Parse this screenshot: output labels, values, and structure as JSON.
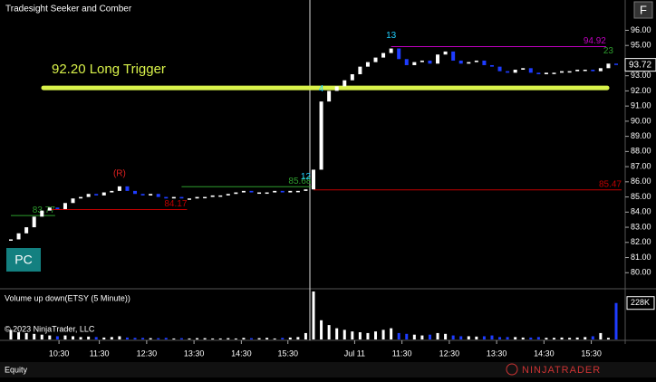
{
  "window_title": "Tradesight Seeker and Comber",
  "corner_button": "F",
  "pc_button": "PC",
  "copyright": "© 2023 NinjaTrader, LLC",
  "status_bar": "Equity",
  "logo": "NINJATRADER",
  "chart_data": {
    "type": "candlestick",
    "ylim": [
      79,
      98
    ],
    "yticks": [
      {
        "value": 80,
        "label": "80.00"
      },
      {
        "value": 81,
        "label": "81.00"
      },
      {
        "value": 82,
        "label": "82.00"
      },
      {
        "value": 83,
        "label": "83.00"
      },
      {
        "value": 84,
        "label": "84.00"
      },
      {
        "value": 85,
        "label": "85.00"
      },
      {
        "value": 86,
        "label": "86.00"
      },
      {
        "value": 87,
        "label": "87.00"
      },
      {
        "value": 88,
        "label": "88.00"
      },
      {
        "value": 89,
        "label": "89.00"
      },
      {
        "value": 90,
        "label": "90.00"
      },
      {
        "value": 91,
        "label": "91.00"
      },
      {
        "value": 92,
        "label": "92.00"
      },
      {
        "value": 93,
        "label": "93.00"
      },
      {
        "value": 95,
        "label": "95.00"
      },
      {
        "value": 96,
        "label": "96.00"
      }
    ],
    "xlim": [
      -1,
      80
    ],
    "xticks": [
      {
        "value": 6.2,
        "label": "10:30"
      },
      {
        "value": 11.4,
        "label": "11:30"
      },
      {
        "value": 17.5,
        "label": "12:30"
      },
      {
        "value": 23.6,
        "label": "13:30"
      },
      {
        "value": 29.7,
        "label": "14:30"
      },
      {
        "value": 35.7,
        "label": "15:30"
      },
      {
        "value": 44.3,
        "label": "Jul 11"
      },
      {
        "value": 50.4,
        "label": "11:30"
      },
      {
        "value": 56.5,
        "label": "12:30"
      },
      {
        "value": 62.6,
        "label": "13:30"
      },
      {
        "value": 68.7,
        "label": "14:30"
      },
      {
        "value": 74.8,
        "label": "15:30"
      }
    ],
    "series": [
      {
        "name": "ETSY",
        "up_color": "#ffffff",
        "down_color": "#1e3cff",
        "values": [
          82.2,
          82.6,
          83.0,
          83.7,
          84.1,
          84.3,
          84.2,
          84.6,
          84.9,
          85.0,
          85.2,
          85.1,
          85.3,
          85.4,
          85.7,
          85.4,
          85.2,
          85.1,
          85.2,
          85.0,
          84.9,
          85.0,
          84.9,
          84.9,
          85.0,
          85.0,
          85.1,
          85.1,
          85.2,
          85.3,
          85.4,
          85.3,
          85.3,
          85.3,
          85.4,
          85.3,
          85.4,
          85.4,
          85.5,
          86.8,
          91.3,
          92.0,
          92.3,
          92.7,
          93.1,
          93.6,
          93.9,
          94.2,
          94.5,
          94.8,
          94.1,
          93.7,
          93.9,
          94.0,
          93.8,
          94.4,
          94.6,
          94.0,
          93.8,
          93.9,
          94.0,
          93.7,
          93.6,
          93.3,
          93.2,
          93.4,
          93.5,
          93.2,
          93.1,
          93.2,
          93.2,
          93.3,
          93.3,
          93.4,
          93.4,
          93.3,
          93.5,
          93.8,
          93.72
        ]
      }
    ],
    "trigger": {
      "value": 92.2,
      "label": "92.20 Long Trigger",
      "color": "#d9f24a"
    },
    "levels": [
      {
        "value": 83.77,
        "color": "#2e9e2e",
        "start": 0,
        "end": 5
      },
      {
        "value": 84.17,
        "color": "#c00000",
        "start": 5,
        "end": 22
      },
      {
        "value": 85.68,
        "color": "#2e9e2e",
        "start": 22,
        "end": 38
      },
      {
        "value": 85.47,
        "color": "#c00000",
        "start": 39,
        "end": 78
      },
      {
        "value": 94.92,
        "color": "#c000c0",
        "start": 49,
        "end": 76
      }
    ],
    "annotations": [
      {
        "text": "(R)",
        "index": 14,
        "color": "#e02020"
      },
      {
        "text": "12",
        "index": 38,
        "color": "#20d0ff"
      },
      {
        "text": "4",
        "index": 40,
        "color": "#20d0ff"
      },
      {
        "text": "13",
        "index": 49,
        "color": "#20d0ff"
      },
      {
        "text": "23",
        "index": 77,
        "color": "#2e9e2e"
      }
    ],
    "volume": {
      "title": "Volume up down(ETSY (5 Minute))",
      "ylim": [
        0,
        300
      ],
      "yticks": [
        {
          "value": 228,
          "label": "228K"
        }
      ],
      "values": [
        60,
        45,
        40,
        35,
        30,
        25,
        20,
        25,
        20,
        15,
        18,
        15,
        12,
        15,
        20,
        12,
        10,
        10,
        8,
        8,
        10,
        6,
        8,
        6,
        8,
        8,
        6,
        6,
        8,
        6,
        10,
        8,
        8,
        10,
        6,
        10,
        12,
        15,
        40,
        300,
        120,
        90,
        70,
        60,
        50,
        45,
        40,
        50,
        60,
        70,
        40,
        35,
        30,
        25,
        30,
        40,
        35,
        25,
        20,
        20,
        18,
        20,
        25,
        15,
        15,
        15,
        12,
        12,
        15,
        10,
        10,
        12,
        10,
        12,
        15,
        20,
        40,
        10,
        228
      ]
    }
  }
}
